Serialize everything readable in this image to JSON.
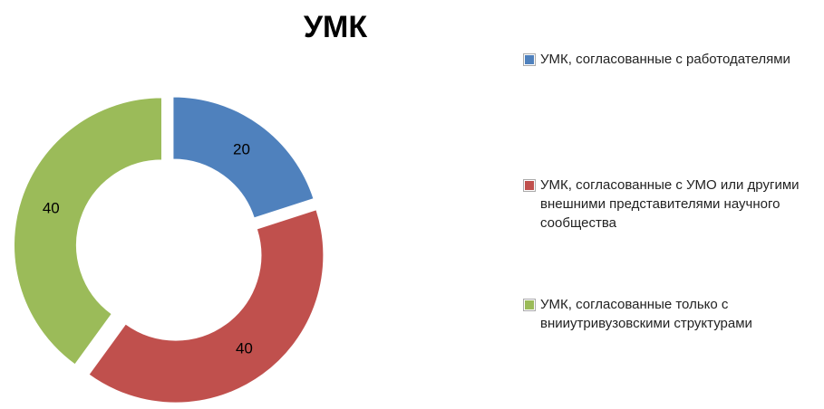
{
  "chart_data": {
    "type": "donut",
    "title": "УМК",
    "categories": [
      "УМК, согласованные  с работодателями",
      "УМК, согласованные  с УМО или другими внешними представителями научного сообщества",
      "УМК, согласованные  только с внииутривузовскими структурами"
    ],
    "values": [
      20,
      40,
      40
    ],
    "colors": [
      "#4f81bd",
      "#c0504d",
      "#9bbb59"
    ]
  }
}
